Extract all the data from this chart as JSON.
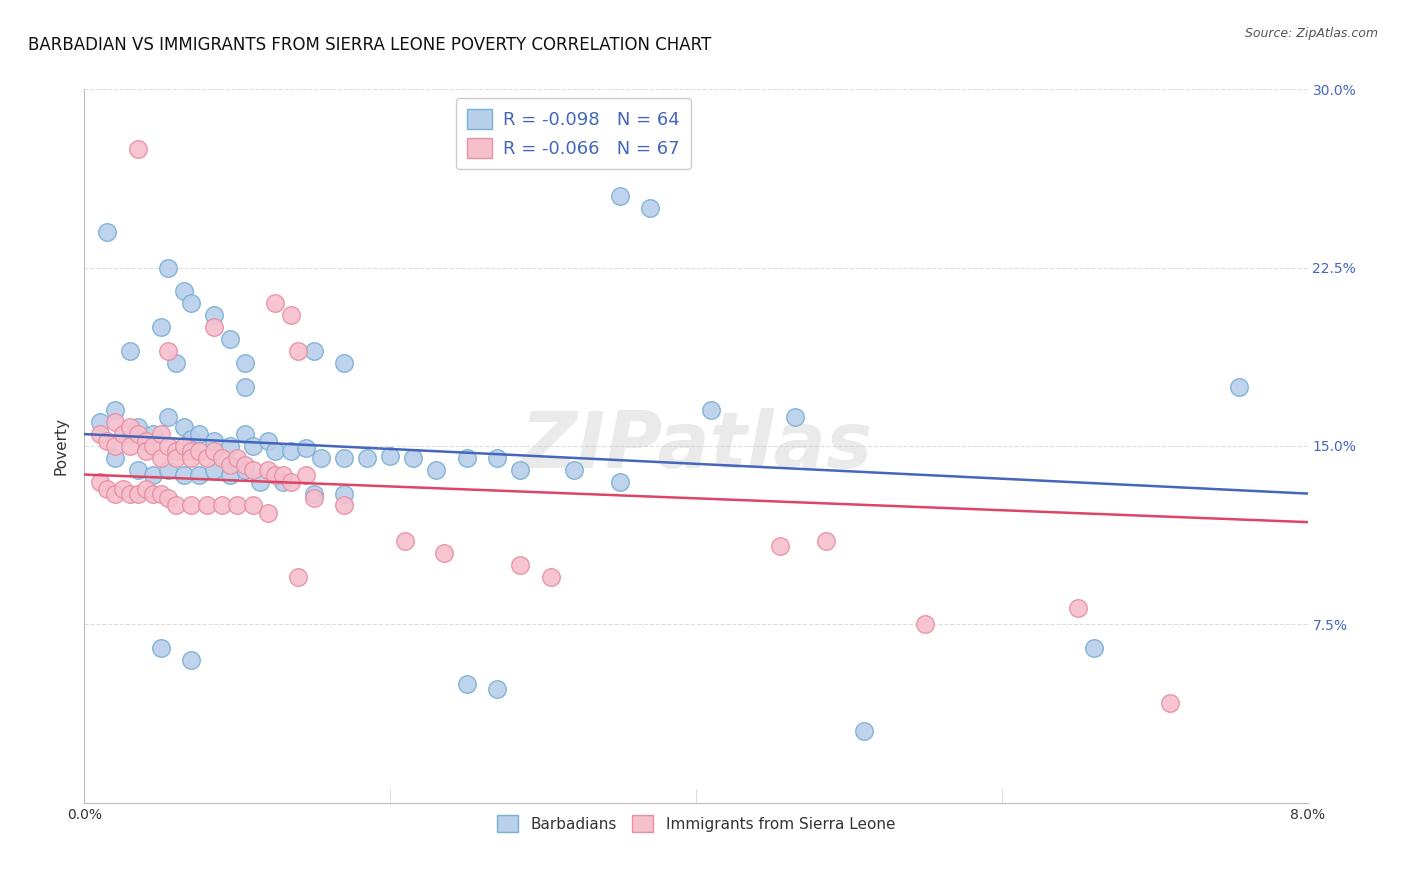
{
  "title": "BARBADIAN VS IMMIGRANTS FROM SIERRA LEONE POVERTY CORRELATION CHART",
  "source": "Source: ZipAtlas.com",
  "ylabel": "Poverty",
  "xlim": [
    0.0,
    8.0
  ],
  "ylim": [
    0.0,
    30.0
  ],
  "ytick_vals": [
    7.5,
    15.0,
    22.5,
    30.0
  ],
  "ytick_labels": [
    "7.5%",
    "15.0%",
    "22.5%",
    "30.0%"
  ],
  "xtick_vals": [
    0.0,
    2.0,
    4.0,
    6.0,
    8.0
  ],
  "xtick_labels": [
    "0.0%",
    "",
    "",
    "",
    "8.0%"
  ],
  "legend_bottom": [
    "Barbadians",
    "Immigrants from Sierra Leone"
  ],
  "blue_face": "#b8d0ea",
  "blue_edge": "#7aafd4",
  "pink_face": "#f5bfcc",
  "pink_edge": "#e88fa4",
  "line_blue": "#4466bb",
  "line_pink": "#dd4466",
  "ytick_color": "#4466bb",
  "watermark": "ZIPatlas",
  "R_blue": -0.098,
  "N_blue": 64,
  "R_pink": -0.066,
  "N_pink": 67,
  "blue_line_y0": 15.5,
  "blue_line_y1": 13.0,
  "pink_line_y0": 13.8,
  "pink_line_y1": 11.8,
  "blue_points": [
    [
      0.15,
      24.0
    ],
    [
      0.55,
      22.5
    ],
    [
      0.65,
      21.5
    ],
    [
      0.7,
      21.0
    ],
    [
      0.85,
      20.5
    ],
    [
      0.95,
      19.5
    ],
    [
      0.6,
      18.5
    ],
    [
      1.05,
      18.5
    ],
    [
      1.05,
      17.5
    ],
    [
      0.5,
      20.0
    ],
    [
      0.3,
      19.0
    ],
    [
      1.5,
      19.0
    ],
    [
      1.7,
      18.5
    ],
    [
      3.5,
      25.5
    ],
    [
      3.7,
      25.0
    ],
    [
      0.1,
      16.0
    ],
    [
      0.2,
      16.5
    ],
    [
      0.3,
      15.5
    ],
    [
      0.35,
      15.8
    ],
    [
      0.45,
      15.5
    ],
    [
      0.55,
      16.2
    ],
    [
      0.65,
      15.8
    ],
    [
      0.7,
      15.3
    ],
    [
      0.75,
      15.5
    ],
    [
      0.85,
      15.2
    ],
    [
      0.95,
      15.0
    ],
    [
      1.05,
      15.5
    ],
    [
      1.1,
      15.0
    ],
    [
      1.2,
      15.2
    ],
    [
      1.25,
      14.8
    ],
    [
      1.35,
      14.8
    ],
    [
      1.45,
      14.9
    ],
    [
      1.55,
      14.5
    ],
    [
      1.7,
      14.5
    ],
    [
      1.85,
      14.5
    ],
    [
      2.0,
      14.6
    ],
    [
      2.15,
      14.5
    ],
    [
      2.3,
      14.0
    ],
    [
      2.5,
      14.5
    ],
    [
      2.7,
      14.5
    ],
    [
      2.85,
      14.0
    ],
    [
      0.2,
      14.5
    ],
    [
      0.35,
      14.0
    ],
    [
      0.45,
      13.8
    ],
    [
      0.55,
      14.0
    ],
    [
      0.65,
      13.8
    ],
    [
      0.75,
      13.8
    ],
    [
      0.85,
      14.0
    ],
    [
      0.95,
      13.8
    ],
    [
      1.05,
      14.0
    ],
    [
      1.15,
      13.5
    ],
    [
      1.3,
      13.5
    ],
    [
      1.5,
      13.0
    ],
    [
      1.7,
      13.0
    ],
    [
      4.1,
      16.5
    ],
    [
      4.65,
      16.2
    ],
    [
      5.1,
      3.0
    ],
    [
      6.6,
      6.5
    ],
    [
      7.55,
      17.5
    ],
    [
      3.2,
      14.0
    ],
    [
      3.5,
      13.5
    ],
    [
      0.5,
      6.5
    ],
    [
      0.7,
      6.0
    ],
    [
      2.5,
      5.0
    ],
    [
      2.7,
      4.8
    ]
  ],
  "pink_points": [
    [
      0.35,
      27.5
    ],
    [
      0.85,
      20.0
    ],
    [
      1.25,
      21.0
    ],
    [
      1.35,
      20.5
    ],
    [
      0.55,
      19.0
    ],
    [
      1.4,
      19.0
    ],
    [
      0.1,
      15.5
    ],
    [
      0.15,
      15.2
    ],
    [
      0.2,
      16.0
    ],
    [
      0.2,
      15.0
    ],
    [
      0.25,
      15.5
    ],
    [
      0.3,
      15.8
    ],
    [
      0.3,
      15.0
    ],
    [
      0.35,
      15.5
    ],
    [
      0.4,
      15.2
    ],
    [
      0.4,
      14.8
    ],
    [
      0.45,
      15.0
    ],
    [
      0.5,
      15.5
    ],
    [
      0.5,
      14.5
    ],
    [
      0.55,
      15.0
    ],
    [
      0.6,
      14.8
    ],
    [
      0.6,
      14.5
    ],
    [
      0.65,
      15.0
    ],
    [
      0.7,
      14.8
    ],
    [
      0.7,
      14.5
    ],
    [
      0.75,
      14.8
    ],
    [
      0.8,
      14.5
    ],
    [
      0.85,
      14.8
    ],
    [
      0.9,
      14.5
    ],
    [
      0.95,
      14.2
    ],
    [
      1.0,
      14.5
    ],
    [
      1.05,
      14.2
    ],
    [
      1.1,
      14.0
    ],
    [
      1.2,
      14.0
    ],
    [
      1.25,
      13.8
    ],
    [
      1.3,
      13.8
    ],
    [
      1.35,
      13.5
    ],
    [
      1.45,
      13.8
    ],
    [
      0.1,
      13.5
    ],
    [
      0.15,
      13.2
    ],
    [
      0.2,
      13.0
    ],
    [
      0.25,
      13.2
    ],
    [
      0.3,
      13.0
    ],
    [
      0.35,
      13.0
    ],
    [
      0.4,
      13.2
    ],
    [
      0.45,
      13.0
    ],
    [
      0.5,
      13.0
    ],
    [
      0.55,
      12.8
    ],
    [
      0.6,
      12.5
    ],
    [
      0.7,
      12.5
    ],
    [
      0.8,
      12.5
    ],
    [
      0.9,
      12.5
    ],
    [
      1.0,
      12.5
    ],
    [
      1.1,
      12.5
    ],
    [
      1.2,
      12.2
    ],
    [
      1.5,
      12.8
    ],
    [
      1.7,
      12.5
    ],
    [
      2.1,
      11.0
    ],
    [
      2.35,
      10.5
    ],
    [
      2.85,
      10.0
    ],
    [
      3.05,
      9.5
    ],
    [
      4.55,
      10.8
    ],
    [
      4.85,
      11.0
    ],
    [
      5.5,
      7.5
    ],
    [
      6.5,
      8.2
    ],
    [
      7.1,
      4.2
    ],
    [
      1.4,
      9.5
    ]
  ],
  "background_color": "#ffffff",
  "grid_color": "#dddddd"
}
